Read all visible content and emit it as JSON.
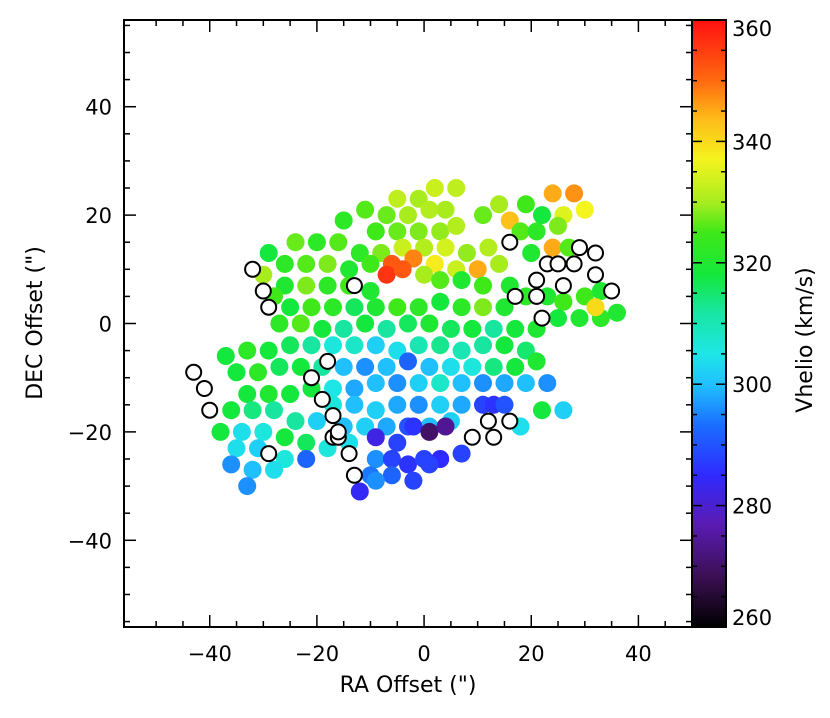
{
  "chart_data": {
    "type": "scatter",
    "xlabel": "RA Offset (\")",
    "ylabel": "DEC Offset (\")",
    "colorbar_label": "Vhelio (km/s)",
    "xlim": [
      -56,
      50
    ],
    "ylim": [
      -56,
      56
    ],
    "x_ticks": [
      -40,
      -20,
      0,
      20,
      40
    ],
    "y_ticks": [
      -40,
      -20,
      0,
      20,
      40
    ],
    "x_tick_labels": [
      "−40",
      "−20",
      "0",
      "20",
      "40"
    ],
    "y_tick_labels": [
      "−40",
      "−20",
      "0",
      "20",
      "40"
    ],
    "colorbar_range": [
      260,
      360
    ],
    "colorbar_ticks": [
      260,
      280,
      300,
      320,
      340,
      360
    ],
    "colorbar_tick_labels": [
      "260",
      "280",
      "300",
      "320",
      "340",
      "360"
    ],
    "marker": "filled circle (fiber), open circle = no measurement",
    "points": [
      [
        -5,
        23,
        332
      ],
      [
        -1,
        23,
        330
      ],
      [
        2,
        25,
        333
      ],
      [
        6,
        25,
        332
      ],
      [
        -11,
        21,
        326
      ],
      [
        -7,
        20,
        327
      ],
      [
        -3,
        20,
        330
      ],
      [
        1,
        21,
        331
      ],
      [
        4,
        21,
        330
      ],
      [
        -15,
        19,
        322
      ],
      [
        -9,
        17,
        325
      ],
      [
        -5,
        17,
        327
      ],
      [
        -1,
        17,
        328
      ],
      [
        3,
        17,
        329
      ],
      [
        6,
        18,
        331
      ],
      [
        11,
        20,
        327
      ],
      [
        14,
        22,
        330
      ],
      [
        16,
        19,
        343
      ],
      [
        19,
        22,
        325
      ],
      [
        22,
        20,
        318
      ],
      [
        24,
        24,
        345
      ],
      [
        28,
        24,
        347
      ],
      [
        26,
        20,
        335
      ],
      [
        30,
        21,
        337
      ],
      [
        -24,
        15,
        327
      ],
      [
        -20,
        15,
        322
      ],
      [
        -16,
        15,
        326
      ],
      [
        -12,
        13,
        322
      ],
      [
        -8,
        13,
        328
      ],
      [
        -4,
        14,
        333
      ],
      [
        0,
        14,
        331
      ],
      [
        4,
        14,
        334
      ],
      [
        8,
        13,
        329
      ],
      [
        12,
        14,
        331
      ],
      [
        18,
        17,
        326
      ],
      [
        21,
        17,
        322
      ],
      [
        25,
        18,
        328
      ],
      [
        20,
        13,
        320
      ],
      [
        24,
        14,
        345
      ],
      [
        27,
        14,
        326
      ],
      [
        -29,
        13,
        318
      ],
      [
        -26,
        11,
        322
      ],
      [
        -22,
        11,
        326
      ],
      [
        -18,
        11,
        328
      ],
      [
        -14,
        10,
        320
      ],
      [
        -10,
        11,
        325
      ],
      [
        -6,
        11,
        352
      ],
      [
        -2,
        12,
        348
      ],
      [
        2,
        11,
        338
      ],
      [
        6,
        10,
        333
      ],
      [
        10,
        10,
        345
      ],
      [
        14,
        11,
        330
      ],
      [
        -30,
        9,
        330
      ],
      [
        -26,
        7,
        320
      ],
      [
        -22,
        7,
        328
      ],
      [
        -18,
        7,
        322
      ],
      [
        -14,
        7,
        325
      ],
      [
        -10,
        6,
        320
      ],
      [
        -7,
        9,
        356
      ],
      [
        -4,
        10,
        352
      ],
      [
        0,
        9,
        330
      ],
      [
        3,
        8,
        326
      ],
      [
        7,
        8,
        320
      ],
      [
        11,
        7,
        325
      ],
      [
        16,
        7,
        320
      ],
      [
        19,
        5,
        322
      ],
      [
        23,
        5,
        320
      ],
      [
        26,
        4,
        325
      ],
      [
        30,
        5,
        325
      ],
      [
        33,
        6,
        320
      ],
      [
        -28,
        5,
        325
      ],
      [
        -25,
        3,
        318
      ],
      [
        -21,
        3,
        325
      ],
      [
        -17,
        3,
        322
      ],
      [
        -13,
        3,
        316
      ],
      [
        -9,
        3,
        320
      ],
      [
        -5,
        3,
        325
      ],
      [
        -1,
        3,
        322
      ],
      [
        3,
        4,
        318
      ],
      [
        7,
        3,
        322
      ],
      [
        11,
        3,
        328
      ],
      [
        15,
        3,
        320
      ],
      [
        25,
        1,
        318
      ],
      [
        29,
        1,
        320
      ],
      [
        33,
        1,
        322
      ],
      [
        36,
        2,
        320
      ],
      [
        32,
        3,
        340
      ],
      [
        -27,
        0,
        322
      ],
      [
        -23,
        0,
        326
      ],
      [
        -19,
        -1,
        318
      ],
      [
        -15,
        -1,
        312
      ],
      [
        -11,
        0,
        318
      ],
      [
        -7,
        -1,
        312
      ],
      [
        -3,
        0,
        316
      ],
      [
        1,
        0,
        320
      ],
      [
        5,
        -1,
        316
      ],
      [
        9,
        -1,
        318
      ],
      [
        13,
        -1,
        312
      ],
      [
        17,
        -1,
        318
      ],
      [
        21,
        -1,
        320
      ],
      [
        -25,
        -4,
        316
      ],
      [
        -21,
        -4,
        312
      ],
      [
        -17,
        -4,
        306
      ],
      [
        -13,
        -4,
        308
      ],
      [
        -9,
        -4,
        302
      ],
      [
        -5,
        -5,
        304
      ],
      [
        -1,
        -4,
        310
      ],
      [
        3,
        -4,
        313
      ],
      [
        7,
        -5,
        310
      ],
      [
        11,
        -4,
        312
      ],
      [
        15,
        -4,
        318
      ],
      [
        19,
        -5,
        315
      ],
      [
        -37,
        -6,
        318
      ],
      [
        -33,
        -5,
        322
      ],
      [
        -29,
        -5,
        318
      ],
      [
        -23,
        -8,
        318
      ],
      [
        -19,
        -8,
        312
      ],
      [
        -15,
        -8,
        300
      ],
      [
        -11,
        -8,
        296
      ],
      [
        -7,
        -8,
        300
      ],
      [
        -3,
        -7,
        292
      ],
      [
        1,
        -8,
        300
      ],
      [
        5,
        -8,
        304
      ],
      [
        9,
        -8,
        306
      ],
      [
        13,
        -8,
        314
      ],
      [
        17,
        -8,
        318
      ],
      [
        21,
        -7,
        320
      ],
      [
        -35,
        -9,
        318
      ],
      [
        -31,
        -9,
        322
      ],
      [
        -27,
        -8,
        316
      ],
      [
        -21,
        -12,
        318
      ],
      [
        -17,
        -12,
        305
      ],
      [
        -13,
        -12,
        298
      ],
      [
        -9,
        -11,
        300
      ],
      [
        -5,
        -11,
        296
      ],
      [
        -1,
        -11,
        302
      ],
      [
        3,
        -11,
        308
      ],
      [
        7,
        -11,
        300
      ],
      [
        11,
        -11,
        296
      ],
      [
        15,
        -11,
        298
      ],
      [
        19,
        -11,
        300
      ],
      [
        23,
        -11,
        296
      ],
      [
        -33,
        -13,
        318
      ],
      [
        -29,
        -13,
        320
      ],
      [
        -25,
        -13,
        318
      ],
      [
        -17,
        -15,
        306
      ],
      [
        -13,
        -15,
        300
      ],
      [
        -9,
        -16,
        302
      ],
      [
        -5,
        -15,
        298
      ],
      [
        -1,
        -15,
        296
      ],
      [
        3,
        -15,
        302
      ],
      [
        7,
        -15,
        298
      ],
      [
        -36,
        -16,
        318
      ],
      [
        -32,
        -16,
        314
      ],
      [
        -28,
        -16,
        312
      ],
      [
        -24,
        -18,
        312
      ],
      [
        -20,
        -18,
        302
      ],
      [
        -15,
        -19,
        300
      ],
      [
        -11,
        -19,
        302
      ],
      [
        -7,
        -19,
        298
      ],
      [
        -3,
        -19,
        290
      ],
      [
        1,
        -19,
        300
      ],
      [
        5,
        -18,
        302
      ],
      [
        11,
        -15,
        288
      ],
      [
        13,
        -15,
        286
      ],
      [
        15,
        -15,
        290
      ],
      [
        18,
        -19,
        304
      ],
      [
        22,
        -16,
        318
      ],
      [
        26,
        -16,
        302
      ],
      [
        -38,
        -20,
        318
      ],
      [
        -34,
        -20,
        304
      ],
      [
        -30,
        -20,
        306
      ],
      [
        -26,
        -21,
        318
      ],
      [
        -22,
        -22,
        316
      ],
      [
        -18,
        -23,
        306
      ],
      [
        -14,
        -22,
        304
      ],
      [
        -9,
        -21,
        282
      ],
      [
        -5,
        -22,
        288
      ],
      [
        -2,
        -19,
        286
      ],
      [
        1,
        -20,
        270
      ],
      [
        4,
        -19,
        274
      ],
      [
        -35,
        -23,
        304
      ],
      [
        -31,
        -23,
        302
      ],
      [
        -26,
        -25,
        306
      ],
      [
        -22,
        -25,
        292
      ],
      [
        -9,
        -25,
        296
      ],
      [
        -6,
        -25,
        288
      ],
      [
        -3,
        -26,
        286
      ],
      [
        0,
        -25,
        288
      ],
      [
        3,
        -25,
        285
      ],
      [
        7,
        -24,
        288
      ],
      [
        -36,
        -26,
        296
      ],
      [
        -32,
        -27,
        300
      ],
      [
        -28,
        -27,
        304
      ],
      [
        -10,
        -28,
        294
      ],
      [
        -6,
        -28,
        292
      ],
      [
        -2,
        -29,
        288
      ],
      [
        1,
        -26,
        288
      ],
      [
        -33,
        -30,
        296
      ],
      [
        -12,
        -31,
        284
      ],
      [
        -9,
        -29,
        296
      ]
    ],
    "empty_points": [
      [
        -32,
        10
      ],
      [
        -30,
        6
      ],
      [
        -29,
        3
      ],
      [
        -13,
        7
      ],
      [
        16,
        15
      ],
      [
        21,
        8
      ],
      [
        17,
        5
      ],
      [
        21,
        5
      ],
      [
        23,
        11
      ],
      [
        25,
        11
      ],
      [
        26,
        7
      ],
      [
        28,
        11
      ],
      [
        29,
        14
      ],
      [
        32,
        13
      ],
      [
        32,
        9
      ],
      [
        35,
        6
      ],
      [
        22,
        1
      ],
      [
        -43,
        -9
      ],
      [
        -41,
        -12
      ],
      [
        -40,
        -16
      ],
      [
        -21,
        -10
      ],
      [
        -19,
        -14
      ],
      [
        -17,
        -17
      ],
      [
        -17,
        -21
      ],
      [
        -18,
        -7
      ],
      [
        -16,
        -21
      ],
      [
        -14,
        -24
      ],
      [
        -13,
        -28
      ],
      [
        9,
        -21
      ],
      [
        12,
        -18
      ],
      [
        13,
        -21
      ],
      [
        16,
        -18
      ],
      [
        -29,
        -24
      ],
      [
        -16,
        -20
      ]
    ]
  }
}
